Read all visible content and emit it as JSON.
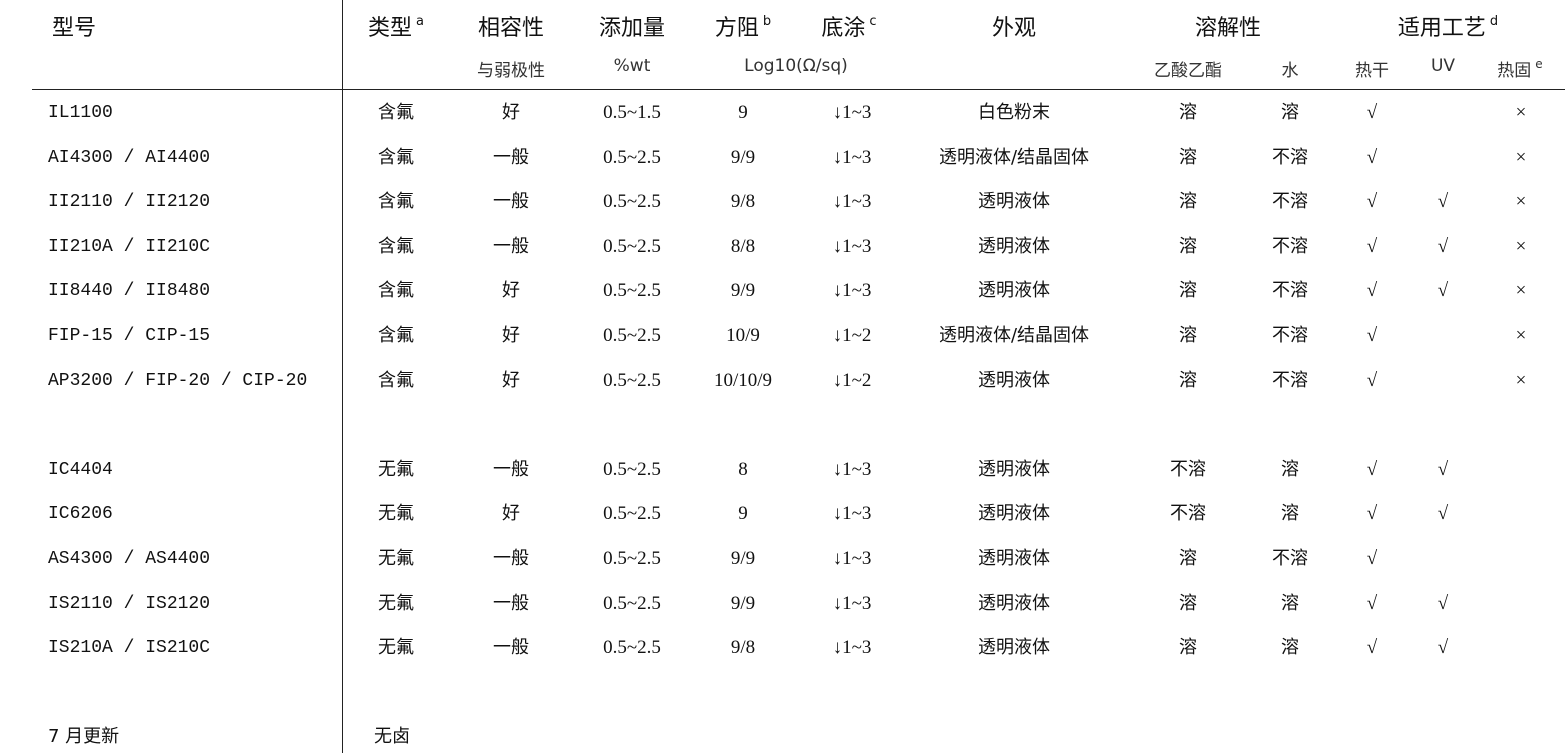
{
  "header": {
    "model": "型号",
    "type": "类型",
    "type_note": "a",
    "compat": "相容性",
    "compat_sub": "与弱极性",
    "dosage": "添加量",
    "dosage_sub": "%wt",
    "resistance": "方阻",
    "resistance_note": "b",
    "resistance_sub": "Log10(Ω/sq)",
    "base": "底涂",
    "base_note": "c",
    "appearance": "外观",
    "solubility": "溶解性",
    "sol_ethyl": "乙酸乙酯",
    "sol_water": "水",
    "process": "适用工艺",
    "process_note": "d",
    "proc_hotdry": "热干",
    "proc_uv": "UV",
    "proc_hotcure": "热固",
    "proc_hotcure_note": "e"
  },
  "rows": [
    {
      "model": "IL1100",
      "type": "含氟",
      "compat": "好",
      "dosage": "0.5~1.5",
      "res": "9",
      "base": "↓1~3",
      "appearance": "白色粉末",
      "ethyl": "溶",
      "water": "溶",
      "hotdry": "√",
      "uv": "",
      "hotcure": "×"
    },
    {
      "model": "AI4300 / AI4400",
      "type": "含氟",
      "compat": "一般",
      "dosage": "0.5~2.5",
      "res": "9/9",
      "base": "↓1~3",
      "appearance": "透明液体/结晶固体",
      "ethyl": "溶",
      "water": "不溶",
      "hotdry": "√",
      "uv": "",
      "hotcure": "×"
    },
    {
      "model": "II2110 / II2120",
      "type": "含氟",
      "compat": "一般",
      "dosage": "0.5~2.5",
      "res": "9/8",
      "base": "↓1~3",
      "appearance": "透明液体",
      "ethyl": "溶",
      "water": "不溶",
      "hotdry": "√",
      "uv": "√",
      "hotcure": "×"
    },
    {
      "model": "II210A / II210C",
      "type": "含氟",
      "compat": "一般",
      "dosage": "0.5~2.5",
      "res": "8/8",
      "base": "↓1~3",
      "appearance": "透明液体",
      "ethyl": "溶",
      "water": "不溶",
      "hotdry": "√",
      "uv": "√",
      "hotcure": "×"
    },
    {
      "model": "II8440 / II8480",
      "type": "含氟",
      "compat": "好",
      "dosage": "0.5~2.5",
      "res": "9/9",
      "base": "↓1~3",
      "appearance": "透明液体",
      "ethyl": "溶",
      "water": "不溶",
      "hotdry": "√",
      "uv": "√",
      "hotcure": "×"
    },
    {
      "model": "FIP-15 / CIP-15",
      "type": "含氟",
      "compat": "好",
      "dosage": "0.5~2.5",
      "res": "10/9",
      "base": "↓1~2",
      "appearance": "透明液体/结晶固体",
      "ethyl": "溶",
      "water": "不溶",
      "hotdry": "√",
      "uv": "",
      "hotcure": "×"
    },
    {
      "model": "AP3200 / FIP-20 / CIP-20",
      "type": "含氟",
      "compat": "好",
      "dosage": "0.5~2.5",
      "res": "10/10/9",
      "base": "↓1~2",
      "appearance": "透明液体",
      "ethyl": "溶",
      "water": "不溶",
      "hotdry": "√",
      "uv": "",
      "hotcure": "×"
    },
    null,
    {
      "model": "IC4404",
      "type": "无氟",
      "compat": "一般",
      "dosage": "0.5~2.5",
      "res": "8",
      "base": "↓1~3",
      "appearance": "透明液体",
      "ethyl": "不溶",
      "water": "溶",
      "hotdry": "√",
      "uv": "√",
      "hotcure": ""
    },
    {
      "model": "IC6206",
      "type": "无氟",
      "compat": "好",
      "dosage": "0.5~2.5",
      "res": "9",
      "base": "↓1~3",
      "appearance": "透明液体",
      "ethyl": "不溶",
      "water": "溶",
      "hotdry": "√",
      "uv": "√",
      "hotcure": ""
    },
    {
      "model": "AS4300 / AS4400",
      "type": "无氟",
      "compat": "一般",
      "dosage": "0.5~2.5",
      "res": "9/9",
      "base": "↓1~3",
      "appearance": "透明液体",
      "ethyl": "溶",
      "water": "不溶",
      "hotdry": "√",
      "uv": "",
      "hotcure": ""
    },
    {
      "model": "IS2110 / IS2120",
      "type": "无氟",
      "compat": "一般",
      "dosage": "0.5~2.5",
      "res": "9/9",
      "base": "↓1~3",
      "appearance": "透明液体",
      "ethyl": "溶",
      "water": "溶",
      "hotdry": "√",
      "uv": "√",
      "hotcure": ""
    },
    {
      "model": "IS210A / IS210C",
      "type": "无氟",
      "compat": "一般",
      "dosage": "0.5~2.5",
      "res": "9/8",
      "base": "↓1~3",
      "appearance": "透明液体",
      "ethyl": "溶",
      "water": "溶",
      "hotdry": "√",
      "uv": "√",
      "hotcure": ""
    },
    null,
    {
      "model": "7 月更新",
      "type": "无卤",
      "compat": "",
      "dosage": "",
      "res": "",
      "base": "",
      "appearance": "",
      "ethyl": "",
      "water": "",
      "hotdry": "",
      "uv": "",
      "hotcure": ""
    }
  ]
}
